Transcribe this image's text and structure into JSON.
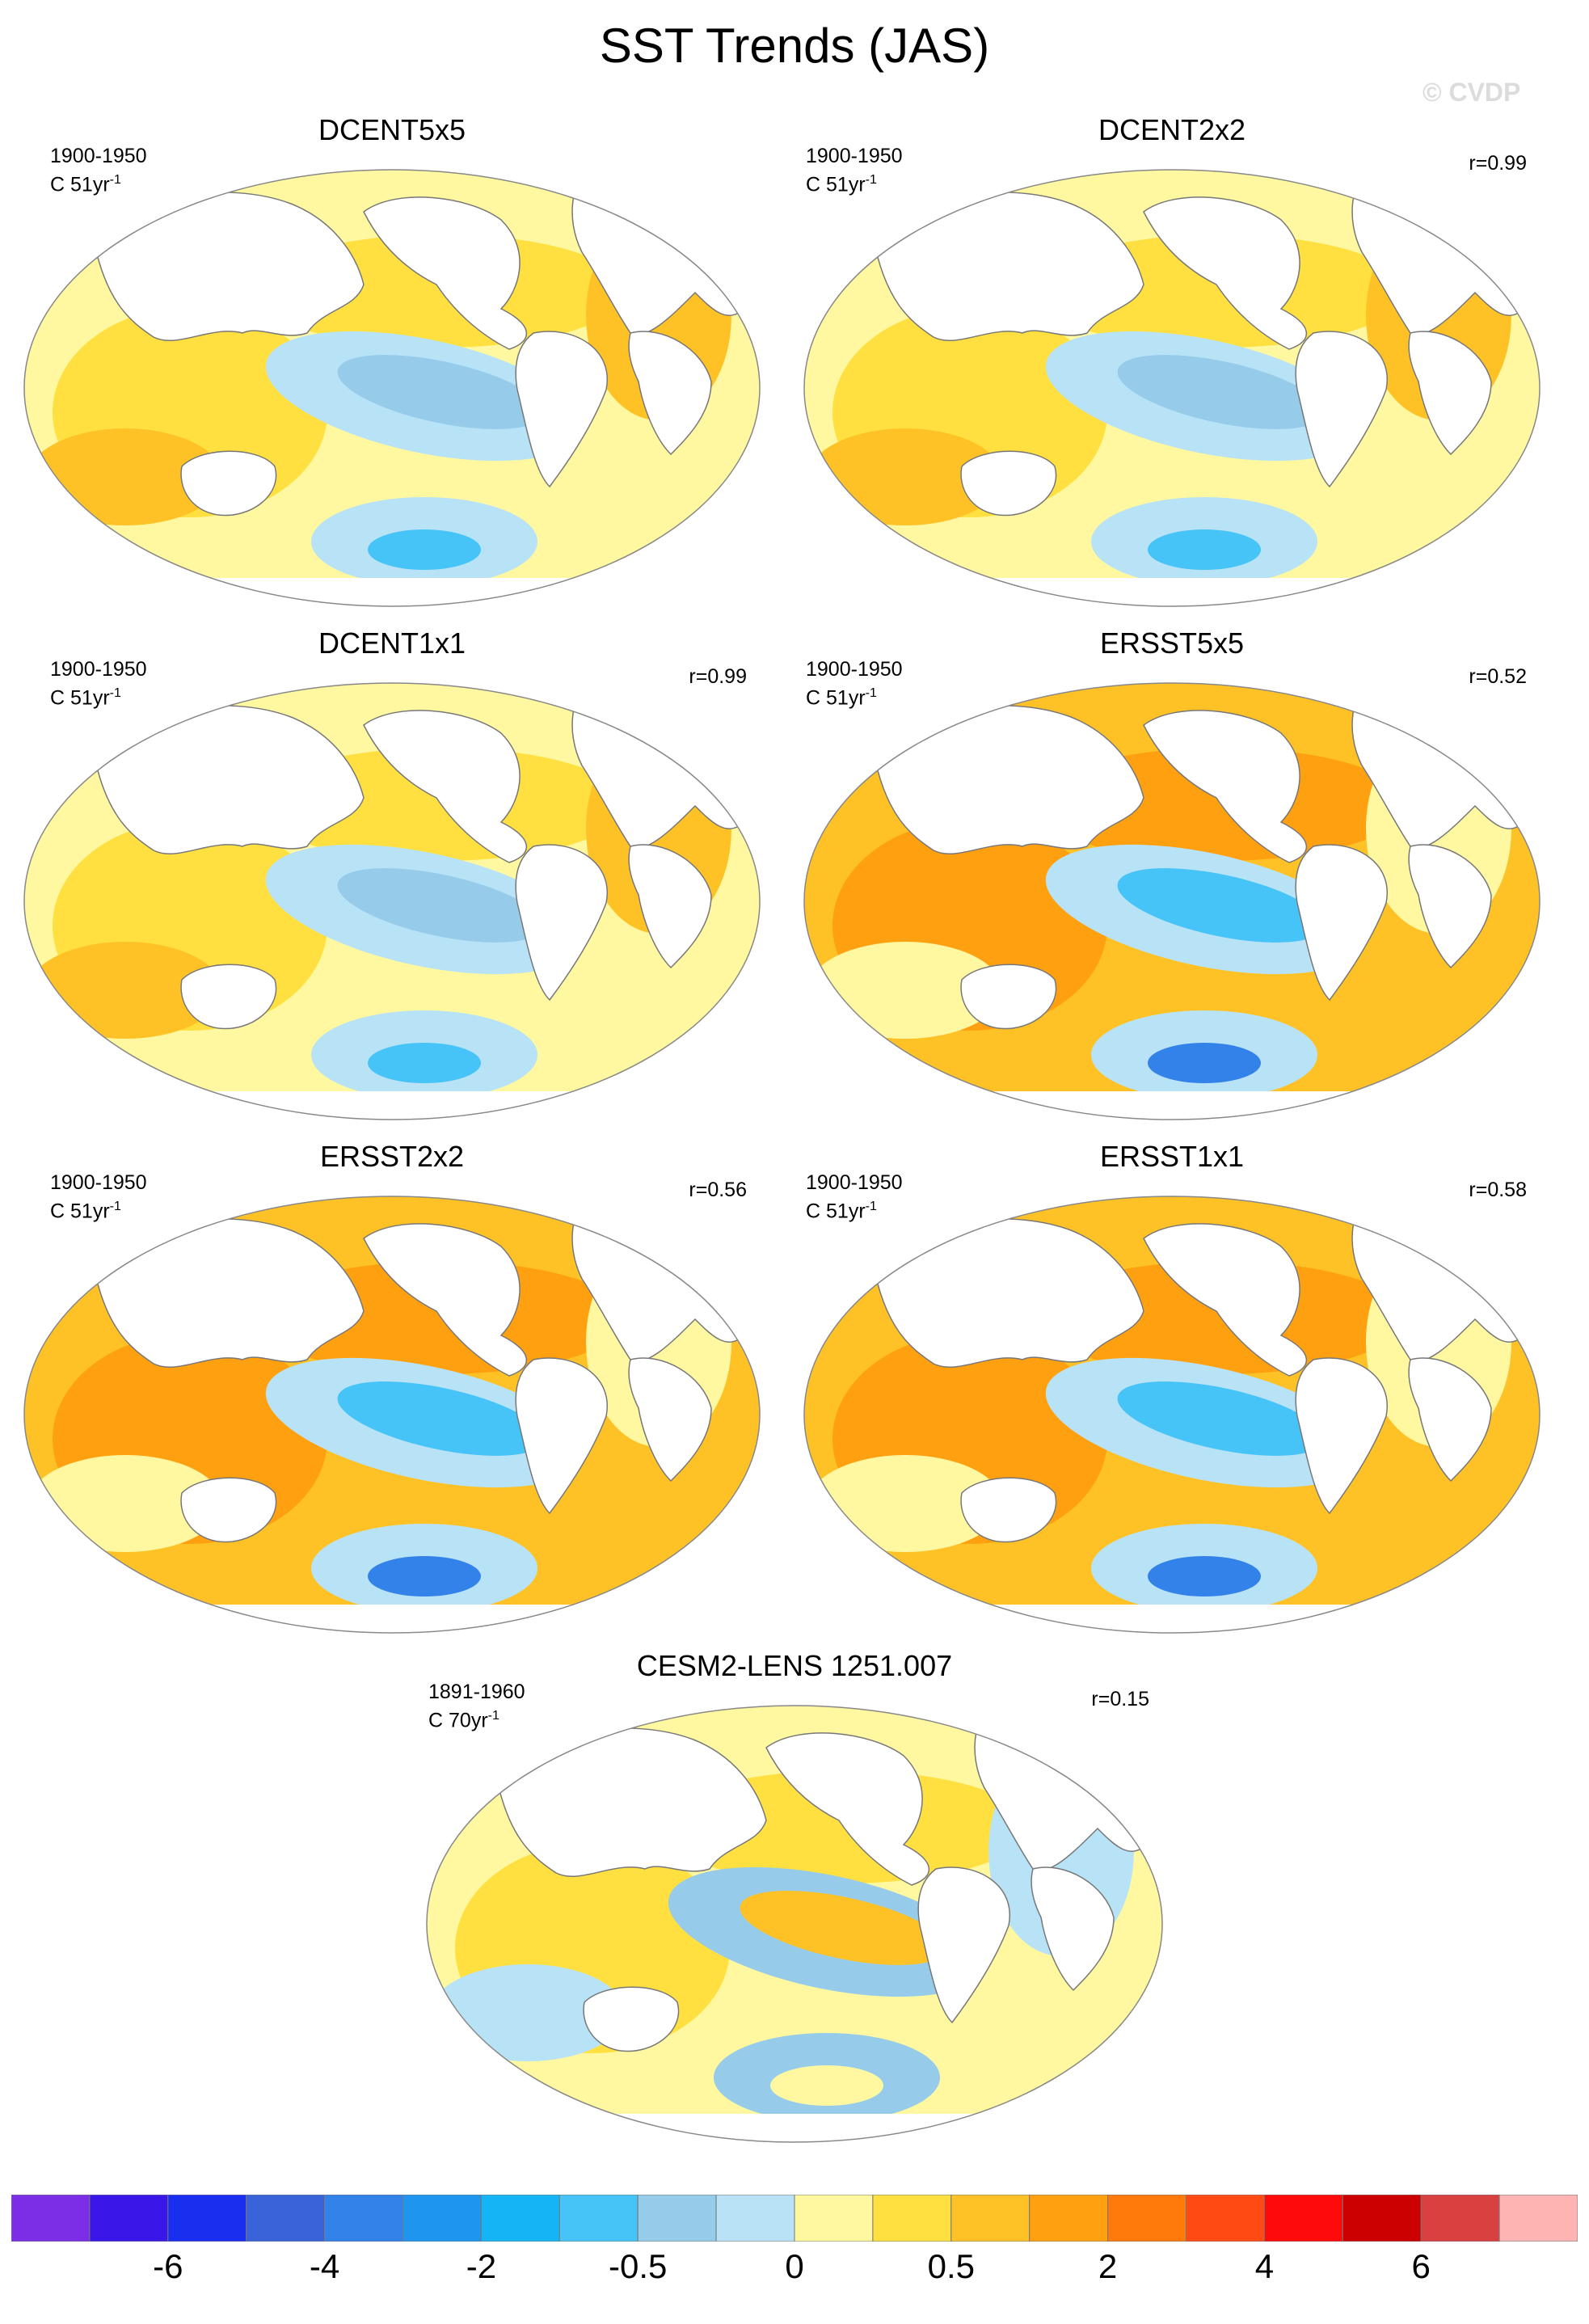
{
  "title": "SST Trends (JAS)",
  "watermark": "© CVDP",
  "unit_prefix": "C",
  "panels": [
    {
      "title": "DCENT5x5",
      "period": "1900-1950",
      "trend_length": "51yr",
      "trend_exp": "-1",
      "corr": ""
    },
    {
      "title": "DCENT2x2",
      "period": "1900-1950",
      "trend_length": "51yr",
      "trend_exp": "-1",
      "corr": "r=0.99"
    },
    {
      "title": "DCENT1x1",
      "period": "1900-1950",
      "trend_length": "51yr",
      "trend_exp": "-1",
      "corr": "r=0.99"
    },
    {
      "title": "ERSST5x5",
      "period": "1900-1950",
      "trend_length": "51yr",
      "trend_exp": "-1",
      "corr": "r=0.52"
    },
    {
      "title": "ERSST2x2",
      "period": "1900-1950",
      "trend_length": "51yr",
      "trend_exp": "-1",
      "corr": "r=0.56"
    },
    {
      "title": "ERSST1x1",
      "period": "1900-1950",
      "trend_length": "51yr",
      "trend_exp": "-1",
      "corr": "r=0.58"
    },
    {
      "title": "CESM2-LENS 1251.007",
      "period": "1891-1960",
      "trend_length": "70yr",
      "trend_exp": "-1",
      "corr": "r=0.15"
    }
  ],
  "colorbar": {
    "colors": [
      "#7b2ee6",
      "#3a16e8",
      "#1a2ef0",
      "#3a63d9",
      "#3382ea",
      "#1e96f0",
      "#14b4f5",
      "#46c3f7",
      "#96ccea",
      "#b8e2f6",
      "#fff8a0",
      "#ffe040",
      "#ffc226",
      "#ffa010",
      "#ff7a0a",
      "#ff4a14",
      "#ff0a0a",
      "#cc0000",
      "#d94040",
      "#ffb4b4"
    ],
    "labels": [
      "-6",
      "-4",
      "-2",
      "-0.5",
      "0",
      "0.5",
      "2",
      "4",
      "6"
    ]
  }
}
